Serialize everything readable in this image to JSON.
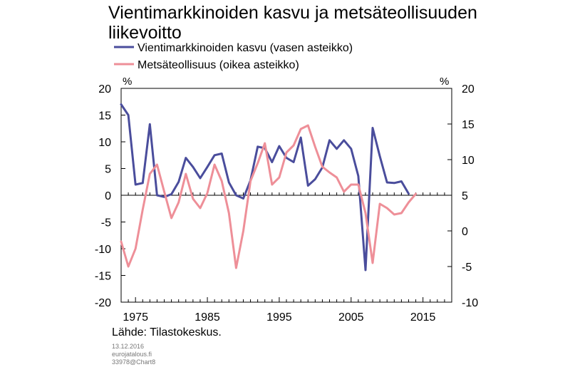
{
  "chart_data": {
    "type": "line",
    "title": "Vientimarkkinoiden kasvu ja metsäteollisuuden liikevoitto",
    "source": "Lähde: Tilastokeskus.",
    "meta": [
      "13.12.2016",
      "eurojatalous.fi",
      "33978@Chart8"
    ],
    "left_unit": "%",
    "right_unit": "%",
    "x_ticks": [
      1975,
      1985,
      1995,
      2005,
      2015
    ],
    "xlim": [
      1973,
      2019
    ],
    "ylim_left": [
      -20,
      20
    ],
    "ylim_right": [
      -10,
      20
    ],
    "left_ticks": [
      20,
      15,
      10,
      5,
      0,
      -5,
      -10,
      -15,
      -20
    ],
    "right_ticks": [
      20,
      15,
      10,
      5,
      0,
      -5,
      -10
    ],
    "legend_position": "top-left",
    "grid": false,
    "series": [
      {
        "name": "Vientimarkkinoiden kasvu (vasen asteikko)",
        "axis": "left",
        "color": "#4a4d9c",
        "x": [
          1973,
          1974,
          1975,
          1976,
          1977,
          1978,
          1979,
          1980,
          1981,
          1982,
          1983,
          1984,
          1985,
          1986,
          1987,
          1988,
          1989,
          1990,
          1991,
          1992,
          1993,
          1994,
          1995,
          1996,
          1997,
          1998,
          1999,
          2000,
          2001,
          2002,
          2003,
          2004,
          2005,
          2006,
          2007,
          2008,
          2009,
          2010,
          2011,
          2012,
          2013,
          2014
        ],
        "y": [
          17,
          15,
          2,
          2.3,
          13.3,
          0,
          -0.3,
          0.2,
          2.5,
          7,
          5.3,
          3.2,
          5.3,
          7.5,
          7.8,
          2.4,
          0,
          -0.6,
          2.8,
          9.1,
          8.8,
          6.2,
          9.2,
          7,
          6.2,
          10.8,
          1.8,
          3,
          5.2,
          10.3,
          8.7,
          10.3,
          8.7,
          3.6,
          -14,
          12.6,
          7.3,
          2.4,
          2.3,
          2.6,
          0.3,
          null
        ]
      },
      {
        "name": "Metsäteollisuus (oikea asteikko)",
        "axis": "right",
        "color": "#ee8f98",
        "x": [
          1973,
          1974,
          1975,
          1976,
          1977,
          1978,
          1979,
          1980,
          1981,
          1982,
          1983,
          1984,
          1985,
          1986,
          1987,
          1988,
          1989,
          1990,
          1991,
          1992,
          1993,
          1994,
          1995,
          1996,
          1997,
          1998,
          1999,
          2000,
          2001,
          2002,
          2003,
          2004,
          2005,
          2006,
          2007,
          2008,
          2009,
          2010,
          2011,
          2012,
          2013,
          2014
        ],
        "y": [
          -1.5,
          -5,
          -2.5,
          3,
          8,
          9.3,
          5.5,
          1.8,
          4,
          8,
          4.5,
          3.2,
          5.3,
          9.3,
          7,
          2.5,
          -5.2,
          0,
          7,
          9.5,
          12.3,
          6.5,
          7.5,
          11,
          12,
          14.3,
          14.8,
          11.8,
          9,
          8.2,
          7.5,
          5.5,
          6.5,
          6.5,
          2.5,
          -4.5,
          3.8,
          3.2,
          2.3,
          2.5,
          4,
          5.2
        ]
      }
    ]
  }
}
